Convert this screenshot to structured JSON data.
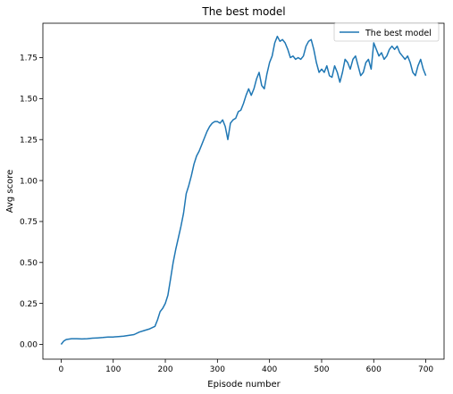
{
  "chart_data": {
    "type": "line",
    "title": "The best model",
    "xlabel": "Episode number",
    "ylabel": "Avg score",
    "xlim": [
      -35,
      735
    ],
    "ylim": [
      -0.09,
      1.96
    ],
    "xticks": [
      0,
      100,
      200,
      300,
      400,
      500,
      600,
      700
    ],
    "xtick_labels": [
      "0",
      "100",
      "200",
      "300",
      "400",
      "500",
      "600",
      "700"
    ],
    "yticks": [
      0,
      0.25,
      0.5,
      0.75,
      1.0,
      1.25,
      1.5,
      1.75
    ],
    "ytick_labels": [
      "0.00",
      "0.25",
      "0.50",
      "0.75",
      "1.00",
      "1.25",
      "1.50",
      "1.75"
    ],
    "grid": false,
    "legend_position": "upper right",
    "series": [
      {
        "name": "The best model",
        "color": "#1f77b4",
        "x": [
          0,
          5,
          10,
          20,
          30,
          40,
          50,
          60,
          70,
          80,
          90,
          100,
          110,
          120,
          130,
          140,
          150,
          160,
          170,
          180,
          185,
          190,
          195,
          200,
          205,
          210,
          215,
          220,
          225,
          230,
          235,
          240,
          245,
          250,
          255,
          260,
          265,
          270,
          275,
          280,
          285,
          290,
          295,
          300,
          305,
          310,
          315,
          320,
          325,
          330,
          335,
          340,
          345,
          350,
          355,
          360,
          365,
          370,
          375,
          380,
          385,
          390,
          395,
          400,
          405,
          410,
          415,
          420,
          425,
          430,
          435,
          440,
          445,
          450,
          455,
          460,
          465,
          470,
          475,
          480,
          485,
          490,
          495,
          500,
          505,
          510,
          515,
          520,
          525,
          530,
          535,
          540,
          545,
          550,
          555,
          560,
          565,
          570,
          575,
          580,
          585,
          590,
          595,
          600,
          605,
          610,
          615,
          620,
          625,
          630,
          635,
          640,
          645,
          650,
          655,
          660,
          665,
          670,
          675,
          680,
          685,
          690,
          695,
          700
        ],
        "y": [
          0.0,
          0.02,
          0.03,
          0.035,
          0.035,
          0.033,
          0.035,
          0.038,
          0.04,
          0.042,
          0.045,
          0.045,
          0.048,
          0.05,
          0.055,
          0.06,
          0.075,
          0.085,
          0.095,
          0.11,
          0.15,
          0.2,
          0.22,
          0.25,
          0.3,
          0.4,
          0.5,
          0.58,
          0.65,
          0.72,
          0.8,
          0.92,
          0.97,
          1.03,
          1.1,
          1.15,
          1.18,
          1.22,
          1.26,
          1.3,
          1.33,
          1.35,
          1.36,
          1.36,
          1.35,
          1.37,
          1.33,
          1.25,
          1.35,
          1.37,
          1.38,
          1.42,
          1.43,
          1.47,
          1.52,
          1.56,
          1.52,
          1.56,
          1.62,
          1.66,
          1.58,
          1.56,
          1.65,
          1.72,
          1.76,
          1.84,
          1.88,
          1.85,
          1.86,
          1.84,
          1.8,
          1.75,
          1.76,
          1.74,
          1.75,
          1.74,
          1.76,
          1.82,
          1.85,
          1.86,
          1.8,
          1.72,
          1.66,
          1.68,
          1.66,
          1.7,
          1.64,
          1.63,
          1.7,
          1.66,
          1.6,
          1.66,
          1.74,
          1.72,
          1.68,
          1.74,
          1.76,
          1.7,
          1.64,
          1.66,
          1.72,
          1.74,
          1.68,
          1.84,
          1.8,
          1.76,
          1.78,
          1.74,
          1.76,
          1.8,
          1.82,
          1.8,
          1.82,
          1.78,
          1.76,
          1.74,
          1.76,
          1.72,
          1.66,
          1.64,
          1.7,
          1.74,
          1.68,
          1.64
        ]
      }
    ]
  }
}
